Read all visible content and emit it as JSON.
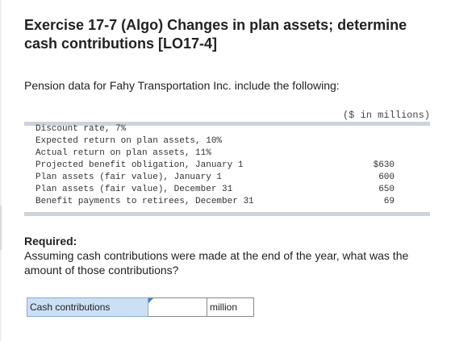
{
  "exercise": {
    "title": "Exercise 17-7 (Algo) Changes in plan assets; determine cash contributions [LO17-4]",
    "intro": "Pension data for Fahy Transportation Inc. include the following:"
  },
  "data_table": {
    "units_header": "($ in millions)",
    "rows": [
      {
        "label": "Discount rate, 7%",
        "value": ""
      },
      {
        "label": "Expected return on plan assets, 10%",
        "value": ""
      },
      {
        "label": "Actual return on plan assets, 11%",
        "value": ""
      },
      {
        "label": "Projected benefit obligation, January 1",
        "value": "$630"
      },
      {
        "label": "Plan assets (fair value), January 1",
        "value": "600"
      },
      {
        "label": "Plan assets (fair value), December 31",
        "value": "650"
      },
      {
        "label": "Benefit payments to retirees, December 31",
        "value": "69"
      }
    ]
  },
  "question": {
    "required_label": "Required:",
    "text": "Assuming cash contributions were made at the end of the year, what was the amount of those contributions?"
  },
  "answer": {
    "label": "Cash contributions",
    "value": "",
    "unit": "million"
  }
}
